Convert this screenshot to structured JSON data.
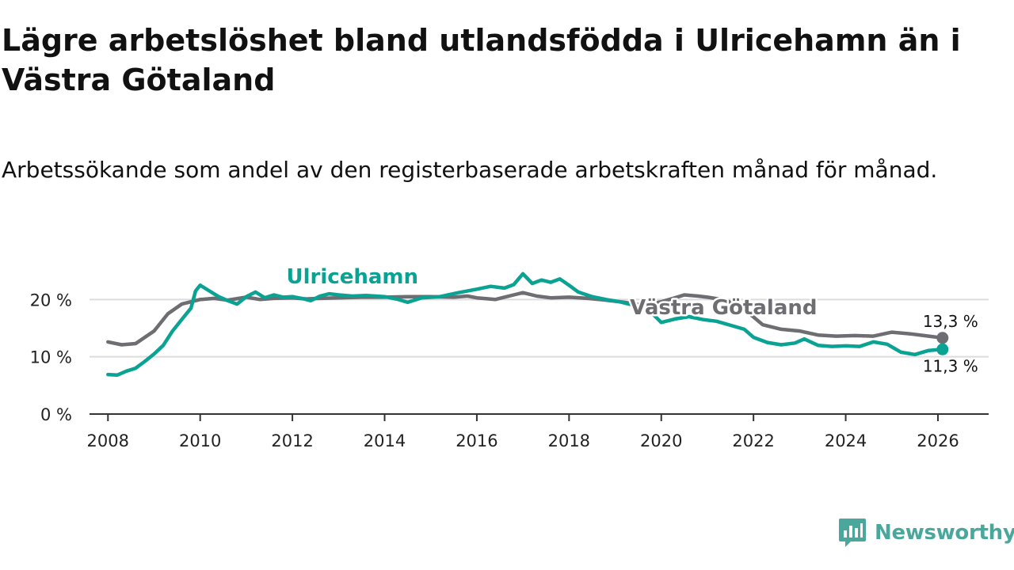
{
  "title": "Lägre arbetslöshet bland utlandsfödda i Ulricehamn än i Västra Götaland",
  "subtitle": "Arbetssökande som andel av den registerbaserade arbetskraften månad för månad.",
  "colors": {
    "ulricehamn": "#0aa293",
    "vastra_gotaland": "#6d6d72",
    "axis": "#333333",
    "grid": "#dcdcdc",
    "logo": "#4aa79c"
  },
  "logo": {
    "icon": "newsworthy-chart-icon",
    "text": "Newsworthy"
  },
  "chart_data": {
    "type": "line",
    "xlabel": "",
    "ylabel": "",
    "xlim": [
      2007.6,
      2027.1
    ],
    "ylim": [
      0,
      30
    ],
    "x_ticks": [
      2008,
      2010,
      2012,
      2014,
      2016,
      2018,
      2020,
      2022,
      2024,
      2026
    ],
    "x_tick_labels": [
      "2008",
      "2010",
      "2012",
      "2014",
      "2016",
      "2018",
      "2020",
      "2022",
      "2024",
      "2026"
    ],
    "y_ticks": [
      0,
      10,
      20
    ],
    "y_tick_labels": [
      "0 %",
      "10 %",
      "20 %"
    ],
    "grid": "horizontal",
    "series": [
      {
        "name": "Västra Götaland",
        "color": "#6d6d72",
        "label_year": 2021.35,
        "label_value": 17.4,
        "end_label": "13,3 %",
        "x": [
          2008.0,
          2008.3,
          2008.6,
          2009.0,
          2009.3,
          2009.6,
          2010.0,
          2010.3,
          2010.6,
          2011.0,
          2011.3,
          2011.6,
          2012.0,
          2012.3,
          2012.6,
          2013.0,
          2013.5,
          2014.0,
          2014.5,
          2015.0,
          2015.5,
          2015.8,
          2016.0,
          2016.4,
          2016.8,
          2017.0,
          2017.3,
          2017.6,
          2018.0,
          2018.4,
          2018.8,
          2019.2,
          2019.6,
          2020.0,
          2020.3,
          2020.5,
          2020.8,
          2021.0,
          2021.4,
          2021.8,
          2022.2,
          2022.6,
          2023.0,
          2023.4,
          2023.8,
          2024.2,
          2024.6,
          2025.0,
          2025.4,
          2025.8,
          2026.1
        ],
        "values": [
          12.6,
          12.1,
          12.3,
          14.5,
          17.5,
          19.2,
          20.0,
          20.2,
          19.9,
          20.4,
          20.0,
          20.2,
          20.3,
          20.1,
          20.2,
          20.3,
          20.4,
          20.4,
          20.5,
          20.5,
          20.4,
          20.6,
          20.3,
          20.0,
          20.8,
          21.2,
          20.6,
          20.3,
          20.4,
          20.2,
          19.9,
          19.5,
          19.0,
          19.6,
          20.3,
          20.8,
          20.6,
          20.4,
          19.9,
          18.3,
          15.6,
          14.8,
          14.5,
          13.8,
          13.6,
          13.7,
          13.6,
          14.3,
          14.0,
          13.6,
          13.3
        ]
      },
      {
        "name": "Ulricehamn",
        "color": "#0aa293",
        "label_year": 2013.3,
        "label_value": 22.8,
        "end_label": "11,3 %",
        "x": [
          2008.0,
          2008.2,
          2008.4,
          2008.6,
          2008.8,
          2009.0,
          2009.2,
          2009.4,
          2009.6,
          2009.8,
          2009.9,
          2010.0,
          2010.2,
          2010.4,
          2010.6,
          2010.8,
          2011.0,
          2011.2,
          2011.4,
          2011.6,
          2011.8,
          2012.0,
          2012.2,
          2012.4,
          2012.6,
          2012.8,
          2013.0,
          2013.3,
          2013.6,
          2014.0,
          2014.3,
          2014.5,
          2014.8,
          2015.2,
          2015.6,
          2016.0,
          2016.3,
          2016.6,
          2016.8,
          2017.0,
          2017.2,
          2017.4,
          2017.6,
          2017.8,
          2018.0,
          2018.2,
          2018.5,
          2018.8,
          2019.1,
          2019.4,
          2019.7,
          2020.0,
          2020.3,
          2020.6,
          2020.9,
          2021.2,
          2021.5,
          2021.8,
          2022.0,
          2022.3,
          2022.6,
          2022.9,
          2023.1,
          2023.4,
          2023.7,
          2024.0,
          2024.3,
          2024.6,
          2024.9,
          2025.2,
          2025.5,
          2025.8,
          2026.1
        ],
        "values": [
          6.9,
          6.8,
          7.5,
          8.0,
          9.2,
          10.5,
          12.0,
          14.5,
          16.5,
          18.5,
          21.5,
          22.5,
          21.5,
          20.5,
          19.8,
          19.2,
          20.5,
          21.3,
          20.3,
          20.8,
          20.4,
          20.5,
          20.2,
          19.8,
          20.6,
          21.0,
          20.8,
          20.6,
          20.7,
          20.5,
          20.0,
          19.5,
          20.3,
          20.5,
          21.2,
          21.8,
          22.3,
          22.0,
          22.6,
          24.5,
          22.8,
          23.4,
          23.0,
          23.6,
          22.5,
          21.3,
          20.5,
          20.0,
          19.6,
          19.0,
          18.4,
          16.0,
          16.6,
          17.0,
          16.5,
          16.2,
          15.5,
          14.8,
          13.4,
          12.5,
          12.1,
          12.4,
          13.1,
          12.0,
          11.8,
          11.9,
          11.8,
          12.6,
          12.2,
          10.8,
          10.4,
          11.1,
          11.3
        ]
      }
    ]
  }
}
